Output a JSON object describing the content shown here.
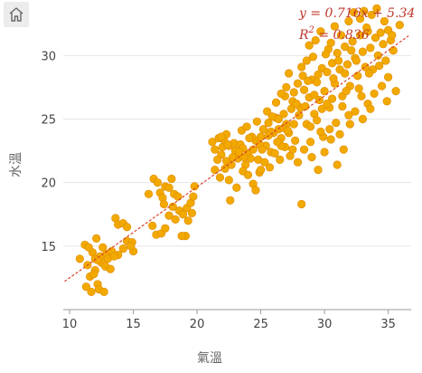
{
  "toolbar": {
    "home_icon": "home-icon"
  },
  "colors": {
    "point_fill": "#F2A900",
    "point_stroke": "#E08A00",
    "trend": "#D9432B",
    "grid": "#e6e6e6",
    "axis": "#999999"
  },
  "chart_data": {
    "type": "scatter",
    "title": "",
    "xlabel": "氣溫",
    "ylabel": "水溫",
    "xlim": [
      9.5,
      36.8
    ],
    "ylim": [
      10.0,
      33.8
    ],
    "xticks": [
      10,
      15,
      20,
      25,
      30,
      35
    ],
    "yticks": [
      15,
      20,
      25,
      30
    ],
    "grid": "horizontal",
    "trendline": {
      "slope": 0.716,
      "intercept": 5.34,
      "equation_label": "y = 0.716x + 5.34",
      "r2_label": "R",
      "r2_sup": "2",
      "r2_value": " = 0.836"
    },
    "points": [
      [
        10.8,
        14.0
      ],
      [
        11.2,
        15.1
      ],
      [
        11.4,
        13.5
      ],
      [
        11.6,
        12.6
      ],
      [
        11.7,
        11.4
      ],
      [
        11.8,
        14.5
      ],
      [
        12.0,
        13.1
      ],
      [
        12.1,
        15.6
      ],
      [
        12.2,
        12.0
      ],
      [
        12.3,
        11.6
      ],
      [
        12.4,
        14.2
      ],
      [
        12.5,
        13.7
      ],
      [
        12.6,
        14.9
      ],
      [
        12.8,
        13.4
      ],
      [
        12.9,
        14.4
      ],
      [
        13.0,
        14.0
      ],
      [
        13.2,
        13.2
      ],
      [
        11.5,
        14.9
      ],
      [
        12.0,
        14.0
      ],
      [
        11.9,
        12.8
      ],
      [
        11.3,
        11.8
      ],
      [
        12.7,
        11.4
      ],
      [
        12.2,
        13.9
      ],
      [
        13.3,
        14.6
      ],
      [
        13.6,
        17.2
      ],
      [
        13.8,
        16.7
      ],
      [
        14.2,
        16.8
      ],
      [
        14.5,
        16.5
      ],
      [
        13.8,
        14.3
      ],
      [
        14.2,
        14.8
      ],
      [
        14.5,
        15.4
      ],
      [
        14.9,
        15.3
      ],
      [
        15.0,
        14.6
      ],
      [
        14.8,
        15.0
      ],
      [
        13.5,
        14.2
      ],
      [
        16.2,
        19.1
      ],
      [
        16.6,
        20.3
      ],
      [
        16.9,
        20.0
      ],
      [
        17.1,
        19.2
      ],
      [
        17.3,
        18.8
      ],
      [
        17.5,
        19.7
      ],
      [
        17.8,
        19.6
      ],
      [
        18.0,
        20.3
      ],
      [
        18.2,
        19.1
      ],
      [
        16.5,
        16.6
      ],
      [
        16.8,
        15.9
      ],
      [
        17.2,
        16.0
      ],
      [
        17.5,
        16.4
      ],
      [
        17.8,
        17.4
      ],
      [
        18.3,
        17.1
      ],
      [
        18.6,
        17.8
      ],
      [
        18.9,
        17.5
      ],
      [
        19.2,
        18.0
      ],
      [
        19.5,
        18.4
      ],
      [
        19.7,
        18.9
      ],
      [
        19.8,
        19.7
      ],
      [
        19.1,
        15.8
      ],
      [
        18.8,
        15.8
      ],
      [
        19.3,
        17.0
      ],
      [
        17.4,
        18.3
      ],
      [
        18.5,
        18.9
      ],
      [
        19.6,
        17.6
      ],
      [
        18.1,
        18.1
      ],
      [
        21.2,
        23.2
      ],
      [
        21.4,
        22.6
      ],
      [
        21.7,
        23.5
      ],
      [
        21.9,
        22.2
      ],
      [
        22.1,
        23.4
      ],
      [
        22.3,
        21.7
      ],
      [
        22.5,
        22.9
      ],
      [
        22.7,
        21.4
      ],
      [
        22.9,
        23.1
      ],
      [
        23.0,
        22.5
      ],
      [
        23.2,
        21.9
      ],
      [
        23.4,
        23.0
      ],
      [
        23.6,
        22.7
      ],
      [
        23.8,
        21.4
      ],
      [
        24.0,
        22.3
      ],
      [
        24.2,
        21.9
      ],
      [
        24.4,
        22.6
      ],
      [
        24.6,
        23.3
      ],
      [
        24.8,
        21.8
      ],
      [
        25.0,
        23.6
      ],
      [
        25.2,
        24.2
      ],
      [
        25.4,
        22.9
      ],
      [
        25.6,
        24.7
      ],
      [
        25.8,
        22.4
      ],
      [
        26.0,
        23.9
      ],
      [
        26.2,
        25.1
      ],
      [
        26.4,
        24.2
      ],
      [
        26.6,
        23.5
      ],
      [
        26.8,
        25.4
      ],
      [
        27.0,
        24.6
      ],
      [
        27.2,
        23.9
      ],
      [
        27.4,
        25.8
      ],
      [
        21.4,
        21.0
      ],
      [
        21.8,
        20.4
      ],
      [
        22.2,
        21.1
      ],
      [
        22.5,
        20.2
      ],
      [
        23.1,
        19.6
      ],
      [
        23.6,
        20.9
      ],
      [
        24.0,
        20.6
      ],
      [
        24.4,
        19.9
      ],
      [
        24.9,
        20.8
      ],
      [
        25.3,
        21.6
      ],
      [
        25.7,
        21.2
      ],
      [
        26.1,
        22.3
      ],
      [
        26.5,
        21.8
      ],
      [
        26.9,
        22.8
      ],
      [
        27.3,
        22.1
      ],
      [
        27.7,
        23.3
      ],
      [
        24.6,
        19.4
      ],
      [
        22.6,
        18.6
      ],
      [
        25.0,
        21.0
      ],
      [
        25.5,
        25.6
      ],
      [
        26.2,
        26.3
      ],
      [
        26.9,
        26.8
      ],
      [
        27.6,
        27.1
      ],
      [
        28.3,
        28.4
      ],
      [
        22.3,
        23.8
      ],
      [
        23.5,
        24.1
      ],
      [
        24.7,
        24.8
      ],
      [
        25.9,
        25.2
      ],
      [
        24.3,
        23.6
      ],
      [
        23.9,
        24.4
      ],
      [
        26.6,
        22.9
      ],
      [
        21.6,
        21.8
      ],
      [
        27.0,
        27.5
      ],
      [
        27.5,
        26.4
      ],
      [
        27.9,
        27.8
      ],
      [
        28.1,
        25.9
      ],
      [
        28.4,
        27.3
      ],
      [
        28.6,
        24.6
      ],
      [
        28.8,
        26.7
      ],
      [
        29.0,
        28.1
      ],
      [
        29.2,
        25.4
      ],
      [
        29.4,
        27.9
      ],
      [
        29.6,
        26.5
      ],
      [
        29.8,
        29.0
      ],
      [
        30.0,
        27.2
      ],
      [
        30.2,
        28.7
      ],
      [
        30.4,
        25.9
      ],
      [
        30.6,
        29.4
      ],
      [
        30.8,
        27.8
      ],
      [
        31.0,
        30.2
      ],
      [
        31.2,
        28.9
      ],
      [
        31.4,
        26.8
      ],
      [
        31.6,
        30.7
      ],
      [
        31.8,
        29.3
      ],
      [
        32.0,
        27.6
      ],
      [
        32.2,
        31.1
      ],
      [
        32.4,
        29.8
      ],
      [
        32.6,
        28.4
      ],
      [
        32.8,
        31.6
      ],
      [
        33.0,
        30.3
      ],
      [
        33.2,
        29.1
      ],
      [
        33.4,
        31.9
      ],
      [
        33.6,
        30.6
      ],
      [
        33.8,
        28.9
      ],
      [
        34.0,
        31.4
      ],
      [
        34.2,
        30.0
      ],
      [
        34.4,
        31.8
      ],
      [
        34.6,
        30.9
      ],
      [
        34.8,
        29.6
      ],
      [
        35.0,
        32.0
      ],
      [
        35.2,
        31.2
      ],
      [
        35.4,
        30.4
      ],
      [
        35.6,
        27.2
      ],
      [
        35.9,
        32.4
      ],
      [
        35.0,
        28.3
      ],
      [
        34.5,
        27.6
      ],
      [
        33.9,
        27.0
      ],
      [
        33.4,
        26.2
      ],
      [
        32.9,
        26.8
      ],
      [
        32.4,
        25.6
      ],
      [
        31.9,
        25.3
      ],
      [
        31.4,
        26.0
      ],
      [
        30.9,
        24.7
      ],
      [
        30.4,
        24.2
      ],
      [
        29.9,
        23.6
      ],
      [
        29.4,
        24.9
      ],
      [
        28.9,
        23.2
      ],
      [
        28.4,
        22.6
      ],
      [
        27.9,
        21.6
      ],
      [
        28.2,
        18.3
      ],
      [
        29.0,
        22.0
      ],
      [
        30.0,
        22.4
      ],
      [
        31.0,
        21.4
      ],
      [
        31.5,
        22.6
      ],
      [
        29.5,
        21.0
      ],
      [
        27.6,
        24.6
      ],
      [
        28.2,
        29.1
      ],
      [
        28.8,
        30.8
      ],
      [
        29.3,
        31.2
      ],
      [
        29.7,
        31.9
      ],
      [
        30.3,
        30.5
      ],
      [
        30.8,
        32.3
      ],
      [
        31.3,
        31.6
      ],
      [
        31.9,
        32.7
      ],
      [
        32.3,
        33.4
      ],
      [
        32.8,
        32.9
      ],
      [
        33.3,
        32.2
      ],
      [
        28.6,
        29.6
      ],
      [
        29.1,
        29.9
      ],
      [
        30.1,
        30.1
      ],
      [
        32.5,
        29.6
      ],
      [
        31.6,
        28.6
      ],
      [
        30.6,
        26.6
      ],
      [
        29.8,
        25.8
      ],
      [
        28.5,
        26.0
      ],
      [
        27.8,
        26.2
      ],
      [
        26.6,
        27.0
      ],
      [
        27.2,
        28.6
      ],
      [
        26.4,
        25.0
      ],
      [
        25.8,
        24.0
      ],
      [
        33.7,
        33.2
      ],
      [
        34.7,
        32.7
      ],
      [
        35.3,
        31.6
      ],
      [
        34.1,
        33.7
      ],
      [
        33.1,
        33.5
      ],
      [
        30.5,
        31.0
      ],
      [
        31.1,
        29.6
      ],
      [
        32.1,
        30.4
      ],
      [
        29.5,
        28.5
      ],
      [
        28.7,
        28.0
      ],
      [
        30.7,
        28.2
      ],
      [
        32.7,
        27.4
      ],
      [
        33.5,
        28.6
      ],
      [
        34.3,
        29.2
      ],
      [
        31.7,
        27.2
      ],
      [
        30.2,
        26.2
      ],
      [
        29.2,
        26.9
      ],
      [
        28.0,
        25.3
      ],
      [
        26.8,
        24.3
      ],
      [
        25.6,
        23.7
      ],
      [
        24.9,
        23.0
      ],
      [
        23.7,
        22.0
      ],
      [
        22.8,
        22.0
      ],
      [
        22.0,
        22.8
      ],
      [
        26.3,
        23.2
      ],
      [
        27.1,
        24.1
      ],
      [
        27.5,
        22.6
      ],
      [
        28.9,
        24.4
      ],
      [
        29.7,
        24.0
      ],
      [
        30.5,
        23.4
      ],
      [
        31.2,
        23.8
      ],
      [
        32.0,
        24.6
      ],
      [
        33.0,
        25.0
      ],
      [
        33.6,
        25.8
      ],
      [
        34.9,
        26.4
      ],
      [
        25.1,
        22.6
      ],
      [
        24.1,
        23.5
      ],
      [
        23.3,
        22.4
      ],
      [
        22.4,
        23.0
      ],
      [
        21.9,
        23.6
      ]
    ]
  }
}
